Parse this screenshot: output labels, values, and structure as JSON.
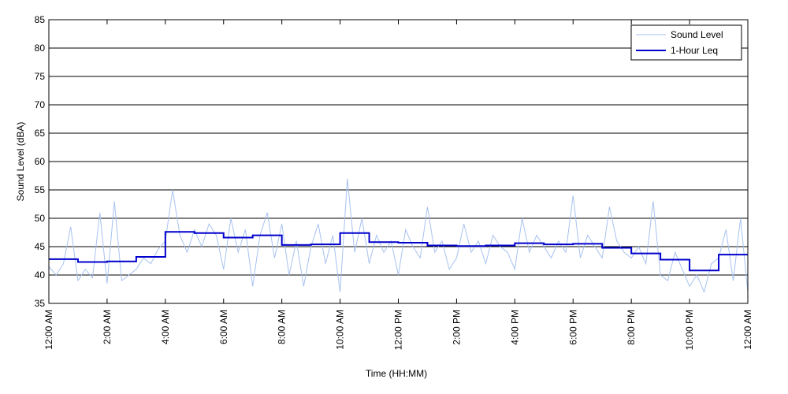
{
  "chart_data": {
    "type": "line",
    "x_label": "Time (HH:MM)",
    "y_label": "Sound Level (dBA)",
    "xlim": [
      0,
      24
    ],
    "ylim": [
      35,
      85
    ],
    "xticks": [
      {
        "value": 0,
        "label": "12:00 AM"
      },
      {
        "value": 2,
        "label": "2:00 AM"
      },
      {
        "value": 4,
        "label": "4:00 AM"
      },
      {
        "value": 6,
        "label": "6:00 AM"
      },
      {
        "value": 8,
        "label": "8:00 AM"
      },
      {
        "value": 10,
        "label": "10:00 AM"
      },
      {
        "value": 12,
        "label": "12:00 PM"
      },
      {
        "value": 14,
        "label": "2:00 PM"
      },
      {
        "value": 16,
        "label": "4:00 PM"
      },
      {
        "value": 18,
        "label": "6:00 PM"
      },
      {
        "value": 20,
        "label": "8:00 PM"
      },
      {
        "value": 22,
        "label": "10:00 PM"
      },
      {
        "value": 24,
        "label": "12:00 AM"
      }
    ],
    "yticks": [
      35,
      40,
      45,
      50,
      55,
      60,
      65,
      70,
      75,
      80,
      85
    ],
    "grid": true,
    "legend": "top-right",
    "series": [
      {
        "name": "Sound Level",
        "color": "#a8c2f0",
        "step": false,
        "x": [
          0,
          0.25,
          0.5,
          0.75,
          1,
          1.25,
          1.5,
          1.75,
          2,
          2.25,
          2.5,
          2.75,
          3,
          3.25,
          3.5,
          3.75,
          4,
          4.25,
          4.5,
          4.75,
          5,
          5.25,
          5.5,
          5.75,
          6,
          6.25,
          6.5,
          6.75,
          7,
          7.25,
          7.5,
          7.75,
          8,
          8.25,
          8.5,
          8.75,
          9,
          9.25,
          9.5,
          9.75,
          10,
          10.25,
          10.5,
          10.75,
          11,
          11.25,
          11.5,
          11.75,
          12,
          12.25,
          12.5,
          12.75,
          13,
          13.25,
          13.5,
          13.75,
          14,
          14.25,
          14.5,
          14.75,
          15,
          15.25,
          15.5,
          15.75,
          16,
          16.25,
          16.5,
          16.75,
          17,
          17.25,
          17.5,
          17.75,
          18,
          18.25,
          18.5,
          18.75,
          19,
          19.25,
          19.5,
          19.75,
          20,
          20.25,
          20.5,
          20.75,
          21,
          21.25,
          21.5,
          21.75,
          22,
          22.25,
          22.5,
          22.75,
          23,
          23.25,
          23.5,
          23.75,
          24
        ],
        "values": [
          41.5,
          40,
          42,
          48.5,
          39,
          41,
          39.5,
          51,
          38.5,
          53,
          39,
          40,
          41,
          43,
          42,
          44.5,
          46,
          55,
          47,
          44,
          48,
          45,
          49,
          47,
          41,
          50,
          44,
          48,
          38,
          47,
          51,
          43,
          49,
          40,
          46,
          38,
          45,
          49,
          42,
          47,
          37,
          57,
          44,
          50,
          42,
          47,
          44,
          46,
          40,
          48,
          45,
          43,
          52,
          44,
          46,
          41,
          43,
          49,
          44,
          46,
          42,
          47,
          45,
          44,
          41,
          50,
          44,
          47,
          45,
          43,
          46,
          44,
          54,
          43,
          47,
          45,
          43,
          52,
          46,
          44,
          43,
          45,
          42,
          53,
          40,
          39,
          44,
          41,
          38,
          40,
          37,
          42,
          43,
          48,
          39,
          50,
          37
        ]
      },
      {
        "name": "1-Hour Leq",
        "color": "#0000cc",
        "step": true,
        "x": [
          0,
          1,
          2,
          3,
          4,
          5,
          6,
          7,
          8,
          9,
          10,
          11,
          12,
          13,
          14,
          15,
          16,
          17,
          18,
          19,
          20,
          21,
          22,
          23
        ],
        "values": [
          42.8,
          42.3,
          42.4,
          43.2,
          47.6,
          47.4,
          46.6,
          47.0,
          45.3,
          45.4,
          47.4,
          45.8,
          45.7,
          45.2,
          45.1,
          45.2,
          45.6,
          45.4,
          45.5,
          44.8,
          43.8,
          42.7,
          40.8,
          43.6
        ]
      }
    ]
  }
}
